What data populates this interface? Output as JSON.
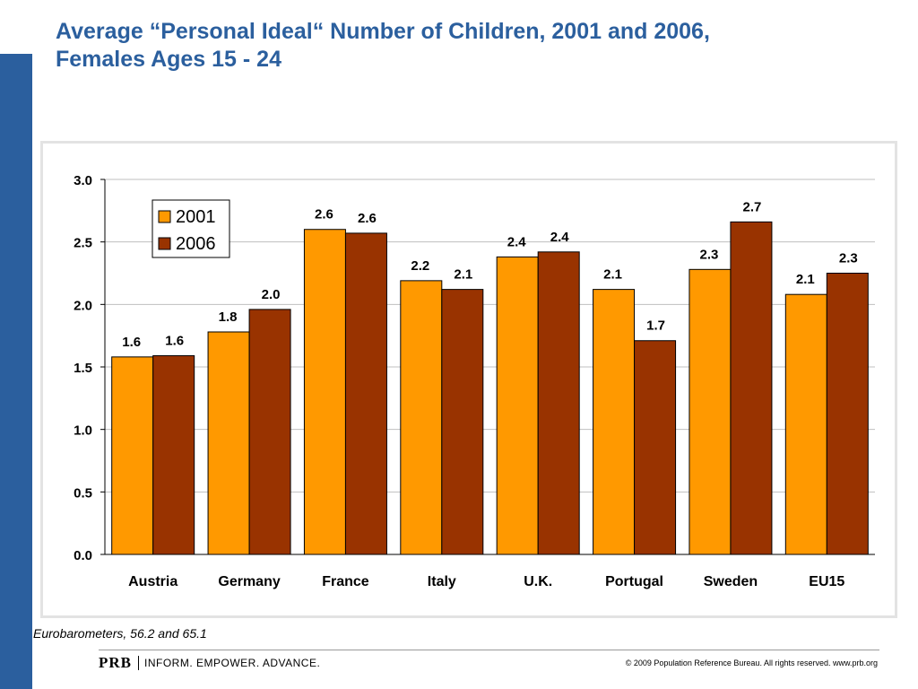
{
  "slide": {
    "title": "Average “Personal Ideal“ Number of Children,  2001 and 2006, Females Ages 15 - 24",
    "source": "Eurobarometers, 56.2 and 65.1",
    "footer": {
      "brand": "PRB",
      "tagline": "INFORM. EMPOWER. ADVANCE.",
      "copyright": "© 2009 Population Reference Bureau. All rights reserved. www.prb.org"
    },
    "colors": {
      "accent": "#2b5f9e",
      "series_2001": "#ff9900",
      "series_2006": "#993300"
    }
  },
  "chart_data": {
    "type": "bar",
    "categories": [
      "Austria",
      "Germany",
      "France",
      "Italy",
      "U.K.",
      "Portugal",
      "Sweden",
      "EU15"
    ],
    "series": [
      {
        "name": "2001",
        "color": "#ff9900",
        "values": [
          1.58,
          1.78,
          2.6,
          2.19,
          2.38,
          2.12,
          2.28,
          2.08
        ],
        "labels": [
          "1.6",
          "1.8",
          "2.6",
          "2.2",
          "2.4",
          "2.1",
          "2.3",
          "2.1"
        ]
      },
      {
        "name": "2006",
        "color": "#993300",
        "values": [
          1.59,
          1.96,
          2.57,
          2.12,
          2.42,
          1.71,
          2.66,
          2.25
        ],
        "labels": [
          "1.6",
          "2.0",
          "2.6",
          "2.1",
          "2.4",
          "1.7",
          "2.7",
          "2.3"
        ]
      }
    ],
    "ylim": [
      0,
      3.0
    ],
    "yticks": [
      "0.0",
      "0.5",
      "1.0",
      "1.5",
      "2.0",
      "2.5",
      "3.0"
    ],
    "grid": true,
    "legend_position": "top-left",
    "xlabel": "",
    "ylabel": ""
  }
}
